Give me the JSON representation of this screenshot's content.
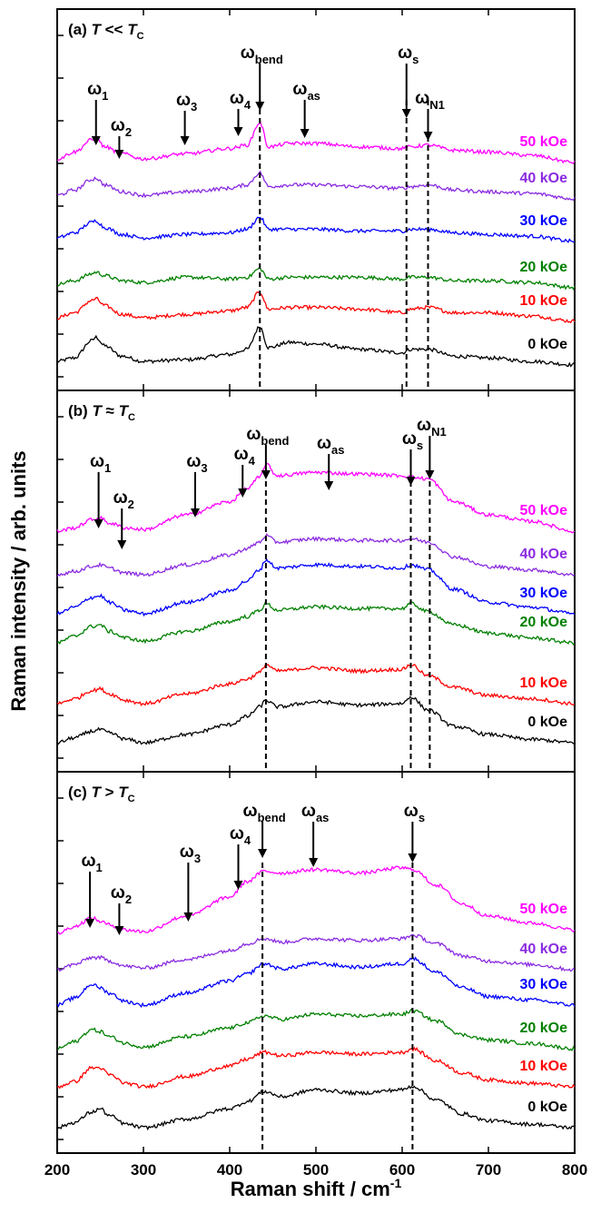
{
  "colors": {
    "0 kOe": "#000000",
    "10 kOe": "#ff0000",
    "20 kOe": "#008000",
    "30 kOe": "#0000ff",
    "40 kOe": "#8a2be2",
    "50 kOe": "#ff00ff",
    "axis": "#000000",
    "marker_line": "#000000"
  },
  "chart_data": {
    "type": "line",
    "xlabel": "Raman shift / cm",
    "xlabel_superscript": "-1",
    "ylabel": "Raman intensity / arb. units",
    "xlim": [
      200,
      800
    ],
    "xticks": [
      "200",
      "300",
      "400",
      "500",
      "600",
      "700",
      "800"
    ],
    "y_tick_labels_shown": false,
    "grid": false,
    "legend": "labels at right end of each curve",
    "panels": [
      {
        "id": "a",
        "title_prefix": "(a) ",
        "title_var": "T",
        "title_rel": " << ",
        "title_var2": "T",
        "title_sub": "C",
        "dashed_lines_at": [
          435,
          605,
          630
        ],
        "modes": [
          {
            "name": "ω",
            "sub": "1",
            "x": 245
          },
          {
            "name": "ω",
            "sub": "2",
            "x": 272
          },
          {
            "name": "ω",
            "sub": "3",
            "x": 348
          },
          {
            "name": "ω",
            "sub": "4",
            "x": 410
          },
          {
            "name": "ω",
            "sub": "bend",
            "x": 435
          },
          {
            "name": "ω",
            "sub": "as",
            "x": 487
          },
          {
            "name": "ω",
            "sub": "s",
            "x": 605
          },
          {
            "name": "ω",
            "sub": "N1",
            "x": 630
          }
        ],
        "x": [
          200,
          220,
          240,
          245,
          255,
          275,
          300,
          350,
          400,
          420,
          435,
          445,
          470,
          500,
          550,
          600,
          610,
          630,
          660,
          700,
          750,
          800
        ],
        "series": [
          {
            "name": "0 kOe",
            "values": [
              0,
              4,
              24,
              28,
              18,
              6,
              0,
              2,
              8,
              14,
              40,
              16,
              22,
              20,
              14,
              10,
              14,
              14,
              6,
              4,
              0,
              -4
            ]
          },
          {
            "name": "10 kOe",
            "values": [
              0,
              6,
              20,
              22,
              14,
              4,
              0,
              4,
              8,
              12,
              30,
              10,
              12,
              12,
              10,
              6,
              10,
              12,
              6,
              6,
              2,
              -4
            ]
          },
          {
            "name": "20 kOe",
            "values": [
              0,
              4,
              12,
              14,
              10,
              4,
              2,
              8,
              6,
              8,
              18,
              6,
              8,
              8,
              8,
              6,
              8,
              8,
              4,
              4,
              2,
              -4
            ]
          },
          {
            "name": "30 kOe",
            "values": [
              0,
              6,
              18,
              20,
              12,
              4,
              0,
              4,
              6,
              10,
              24,
              10,
              10,
              10,
              8,
              8,
              10,
              10,
              6,
              4,
              2,
              -4
            ]
          },
          {
            "name": "40 kOe",
            "values": [
              0,
              6,
              18,
              20,
              12,
              4,
              0,
              4,
              8,
              12,
              26,
              10,
              12,
              12,
              10,
              8,
              10,
              12,
              6,
              4,
              2,
              -4
            ]
          },
          {
            "name": "50 kOe",
            "values": [
              0,
              8,
              22,
              24,
              14,
              6,
              0,
              6,
              12,
              16,
              42,
              14,
              18,
              18,
              14,
              12,
              14,
              16,
              10,
              8,
              4,
              -4
            ]
          }
        ]
      },
      {
        "id": "b",
        "title_prefix": "(b) ",
        "title_var": "T",
        "title_rel": " ≈ ",
        "title_var2": "T",
        "title_sub": "C",
        "dashed_lines_at": [
          442,
          610,
          632
        ],
        "modes": [
          {
            "name": "ω",
            "sub": "1",
            "x": 248
          },
          {
            "name": "ω",
            "sub": "2",
            "x": 275
          },
          {
            "name": "ω",
            "sub": "3",
            "x": 360
          },
          {
            "name": "ω",
            "sub": "4",
            "x": 415
          },
          {
            "name": "ω",
            "sub": "bend",
            "x": 442
          },
          {
            "name": "ω",
            "sub": "as",
            "x": 515
          },
          {
            "name": "ω",
            "sub": "s",
            "x": 610
          },
          {
            "name": "ω",
            "sub": "N1",
            "x": 632
          }
        ],
        "x": [
          200,
          220,
          240,
          250,
          260,
          280,
          300,
          350,
          400,
          420,
          435,
          442,
          455,
          500,
          550,
          600,
          610,
          630,
          660,
          700,
          750,
          800
        ],
        "series": [
          {
            "name": "0 kOe",
            "values": [
              0,
              6,
              14,
              16,
              12,
              4,
              0,
              10,
              22,
              32,
              44,
              52,
              44,
              50,
              46,
              48,
              56,
              40,
              20,
              10,
              4,
              0
            ]
          },
          {
            "name": "10 kOe",
            "values": [
              0,
              6,
              16,
              18,
              12,
              4,
              0,
              12,
              24,
              30,
              38,
              48,
              40,
              44,
              40,
              42,
              48,
              34,
              20,
              10,
              6,
              0
            ]
          },
          {
            "name": "20 kOe",
            "values": [
              0,
              8,
              20,
              22,
              14,
              6,
              2,
              14,
              26,
              32,
              40,
              48,
              40,
              44,
              42,
              42,
              48,
              38,
              22,
              12,
              6,
              0
            ]
          },
          {
            "name": "30 kOe",
            "values": [
              0,
              8,
              20,
              22,
              14,
              4,
              0,
              14,
              28,
              40,
              54,
              66,
              56,
              60,
              58,
              56,
              60,
              54,
              30,
              14,
              8,
              0
            ]
          },
          {
            "name": "40 kOe",
            "values": [
              0,
              4,
              10,
              12,
              8,
              2,
              0,
              12,
              24,
              32,
              40,
              48,
              40,
              44,
              42,
              42,
              44,
              40,
              22,
              10,
              6,
              0
            ]
          },
          {
            "name": "50 kOe",
            "values": [
              0,
              4,
              14,
              16,
              10,
              4,
              2,
              20,
              36,
              52,
              66,
              82,
              68,
              72,
              70,
              68,
              66,
              64,
              36,
              20,
              12,
              0
            ]
          }
        ]
      },
      {
        "id": "c",
        "title_prefix": "(c) ",
        "title_var": "T",
        "title_rel": " > ",
        "title_var2": "T",
        "title_sub": "C",
        "dashed_lines_at": [
          438,
          612
        ],
        "modes": [
          {
            "name": "ω",
            "sub": "1",
            "x": 238
          },
          {
            "name": "ω",
            "sub": "2",
            "x": 272
          },
          {
            "name": "ω",
            "sub": "3",
            "x": 352
          },
          {
            "name": "ω",
            "sub": "4",
            "x": 410
          },
          {
            "name": "ω",
            "sub": "bend",
            "x": 438
          },
          {
            "name": "ω",
            "sub": "as",
            "x": 497
          },
          {
            "name": "ω",
            "sub": "s",
            "x": 612
          }
        ],
        "x": [
          200,
          220,
          240,
          250,
          260,
          280,
          300,
          350,
          400,
          420,
          440,
          460,
          500,
          550,
          600,
          612,
          640,
          670,
          700,
          750,
          800
        ],
        "series": [
          {
            "name": "0 kOe",
            "values": [
              0,
              6,
              18,
              22,
              14,
              4,
              0,
              10,
              22,
              30,
              42,
              36,
              44,
              40,
              44,
              48,
              32,
              16,
              8,
              4,
              0
            ]
          },
          {
            "name": "10 kOe",
            "values": [
              0,
              6,
              22,
              22,
              14,
              4,
              0,
              12,
              24,
              32,
              40,
              36,
              40,
              38,
              40,
              44,
              30,
              16,
              8,
              4,
              0
            ]
          },
          {
            "name": "20 kOe",
            "values": [
              0,
              8,
              22,
              20,
              14,
              6,
              2,
              14,
              24,
              30,
              38,
              34,
              40,
              38,
              40,
              44,
              32,
              16,
              10,
              6,
              0
            ]
          },
          {
            "name": "30 kOe",
            "values": [
              0,
              8,
              24,
              20,
              14,
              4,
              0,
              14,
              28,
              36,
              48,
              42,
              48,
              44,
              48,
              54,
              38,
              20,
              10,
              6,
              0
            ]
          },
          {
            "name": "40 kOe",
            "values": [
              0,
              6,
              14,
              14,
              10,
              4,
              2,
              12,
              22,
              30,
              36,
              32,
              36,
              34,
              36,
              40,
              30,
              16,
              10,
              6,
              0
            ]
          },
          {
            "name": "50 kOe",
            "values": [
              0,
              8,
              18,
              14,
              10,
              4,
              2,
              20,
              42,
              60,
              72,
              70,
              74,
              70,
              76,
              74,
              56,
              34,
              20,
              12,
              4
            ]
          }
        ]
      }
    ]
  }
}
